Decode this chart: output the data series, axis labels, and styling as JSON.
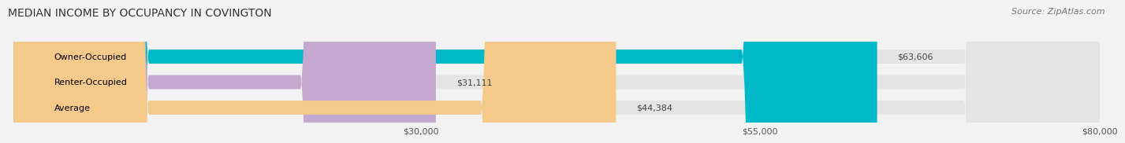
{
  "title": "MEDIAN INCOME BY OCCUPANCY IN COVINGTON",
  "source": "Source: ZipAtlas.com",
  "categories": [
    "Owner-Occupied",
    "Renter-Occupied",
    "Average"
  ],
  "values": [
    63606,
    31111,
    44384
  ],
  "labels": [
    "$63,606",
    "$31,111",
    "$44,384"
  ],
  "bar_colors": [
    "#00b8c8",
    "#c4a8d0",
    "#f4c98a"
  ],
  "bar_bg_color": "#e4e4e4",
  "xmin": 0,
  "xmax": 80000,
  "xticks": [
    30000,
    55000,
    80000
  ],
  "xtick_labels": [
    "$30,000",
    "$55,000",
    "$80,000"
  ],
  "title_fontsize": 10,
  "source_fontsize": 8,
  "label_fontsize": 8,
  "tick_fontsize": 8,
  "bar_height": 0.55,
  "background_color": "#f2f2f2"
}
